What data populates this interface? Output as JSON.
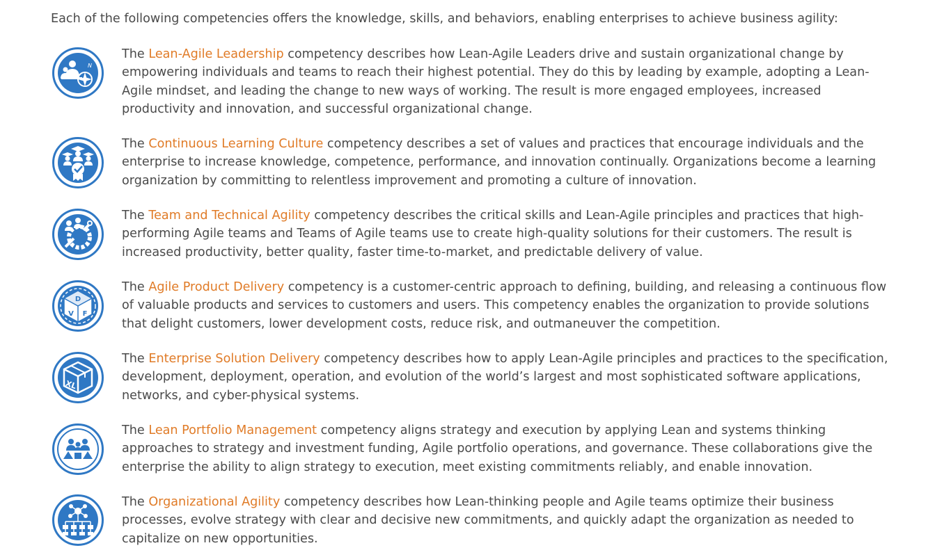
{
  "intro": "Each of the following competencies offers the knowledge, skills, and behaviors, enabling enterprises to achieve business agility:",
  "competencies": [
    {
      "prefix": "The ",
      "link": "Lean-Agile Leadership",
      "text": " competency describes how Lean-Agile Leaders drive and sustain organizational change by empowering individuals and teams to reach their highest potential. They do this by leading by example, adopting a Lean-Agile mindset, and leading the change to new ways of working. The result is more engaged employees, increased productivity and innovation, and successful organizational change.",
      "icon": "leadership-compass-icon"
    },
    {
      "prefix": "The ",
      "link": "Continuous Learning Culture",
      "text": " competency describes a set of values and practices that encourage individuals and the enterprise to increase knowledge, competence, performance, and innovation continually. Organizations become a learning organization by committing to relentless improvement and promoting a culture of innovation.",
      "icon": "graduates-badge-icon"
    },
    {
      "prefix": "The ",
      "link": "Team and Technical Agility",
      "text": " competency describes the critical skills and Lean-Agile principles and practices that high-performing Agile teams and Teams of Agile teams use to create high-quality solutions for their customers. The result is increased productivity, better quality, faster time-to-market, and predictable delivery of value.",
      "icon": "team-gear-tools-icon"
    },
    {
      "prefix": "The ",
      "link": "Agile Product Delivery",
      "text": " competency is a customer-centric approach to defining, building, and releasing a continuous flow of valuable products and services to customers and users. This competency enables the organization to provide solutions that delight customers, lower development costs, reduce risk, and outmaneuver the competition.",
      "icon": "dvf-cube-icon",
      "icon_letters": [
        "D",
        "V",
        "F"
      ]
    },
    {
      "prefix": "The ",
      "link": "Enterprise Solution Delivery",
      "text": " competency describes how to apply Lean-Agile principles and practices to the specification, development, deployment, operation, and evolution of the world’s largest and most sophisticated software applications, networks, and cyber-physical systems.",
      "icon": "xl-box-icon",
      "icon_letters": [
        "XL"
      ]
    },
    {
      "prefix": "The ",
      "link": "Lean Portfolio Management",
      "text": " competency aligns strategy and execution by applying Lean and systems thinking approaches to strategy and investment funding, Agile portfolio operations, and governance. These collaborations give the enterprise the ability to align strategy to execution, meet existing commitments reliably, and enable innovation.",
      "icon": "portfolio-people-icon"
    },
    {
      "prefix": "The ",
      "link": "Organizational Agility",
      "text": " competency describes how Lean-thinking people and Agile teams optimize their business processes, evolve strategy with clear and decisive new commitments, and quickly adapt the organization as needed to capitalize on new opportunities.",
      "icon": "org-network-icon"
    }
  ],
  "colors": {
    "text": "#4a4a4a",
    "link": "#e07b27",
    "icon_blue": "#2f78c4"
  }
}
